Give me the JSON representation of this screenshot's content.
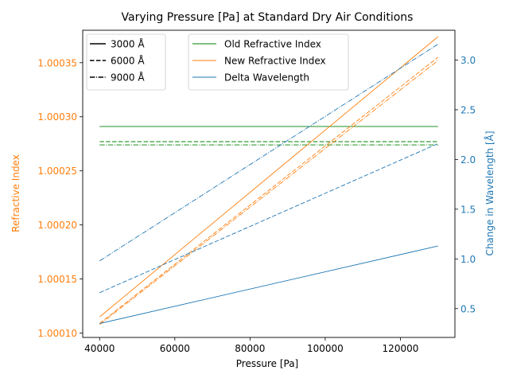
{
  "chart_data": {
    "type": "line",
    "title": "Varying Pressure [Pa] at Standard Dry Air Conditions",
    "xlabel": "Pressure [Pa]",
    "ylabel_left": "Refractive Index",
    "ylabel_right": "Change in Wavelength [Å]",
    "xlim": [
      35500,
      134500
    ],
    "ylim_left": [
      1.000096,
      1.00038
    ],
    "ylim_right": [
      0.21,
      3.3
    ],
    "x_ticks": [
      40000,
      60000,
      80000,
      100000,
      120000
    ],
    "x_tick_labels": [
      "40000",
      "60000",
      "80000",
      "100000",
      "120000"
    ],
    "y_left_ticks": [
      1.0001,
      1.00015,
      1.0002,
      1.00025,
      1.0003,
      1.00035
    ],
    "y_left_tick_labels": [
      "1.00010",
      "1.00015",
      "1.00020",
      "1.00025",
      "1.00030",
      "1.00035"
    ],
    "y_right_ticks": [
      0.5,
      1.0,
      1.5,
      2.0,
      2.5,
      3.0
    ],
    "y_right_tick_labels": [
      "0.5",
      "1.0",
      "1.5",
      "2.0",
      "2.5",
      "3.0"
    ],
    "grid": false,
    "colors": {
      "old_index": "#008000",
      "new_index": "#ff7f0e",
      "delta": "#1f77b4",
      "left_axis": "#ff7f0e",
      "right_axis": "#1f77b4"
    },
    "legend_styles": {
      "placement": "top-left",
      "entries": [
        {
          "label": "3000 Å",
          "dash": "solid"
        },
        {
          "label": "6000 Å",
          "dash": "dashed"
        },
        {
          "label": "9000 Å",
          "dash": "dashdot"
        }
      ]
    },
    "legend_quantities": {
      "placement": "top-center",
      "entries": [
        {
          "label": "Old Refractive Index",
          "color": "#008000"
        },
        {
          "label": "New Refractive Index",
          "color": "#ff7f0e"
        },
        {
          "label": "Delta Wavelength",
          "color": "#1f77b4"
        }
      ]
    },
    "series": [
      {
        "quantity": "Old Refractive Index",
        "wavelength": "3000 Å",
        "dash": "solid",
        "axis": "left",
        "color": "#008000",
        "x": [
          40000,
          130000
        ],
        "y": [
          1.000291,
          1.000291
        ]
      },
      {
        "quantity": "Old Refractive Index",
        "wavelength": "6000 Å",
        "dash": "dashed",
        "axis": "left",
        "color": "#008000",
        "x": [
          40000,
          130000
        ],
        "y": [
          1.000277,
          1.000277
        ]
      },
      {
        "quantity": "Old Refractive Index",
        "wavelength": "9000 Å",
        "dash": "dashdot",
        "axis": "left",
        "color": "#008000",
        "x": [
          40000,
          130000
        ],
        "y": [
          1.000274,
          1.000274
        ]
      },
      {
        "quantity": "New Refractive Index",
        "wavelength": "3000 Å",
        "dash": "solid",
        "axis": "left",
        "color": "#ff7f0e",
        "x": [
          40000,
          130000
        ],
        "y": [
          1.000115,
          1.000374
        ]
      },
      {
        "quantity": "New Refractive Index",
        "wavelength": "6000 Å",
        "dash": "dashed",
        "axis": "left",
        "color": "#ff7f0e",
        "x": [
          40000,
          130000
        ],
        "y": [
          1.000109,
          1.000355
        ]
      },
      {
        "quantity": "New Refractive Index",
        "wavelength": "9000 Å",
        "dash": "dashdot",
        "axis": "left",
        "color": "#ff7f0e",
        "x": [
          40000,
          130000
        ],
        "y": [
          1.000108,
          1.000352
        ]
      },
      {
        "quantity": "Delta Wavelength",
        "wavelength": "3000 Å",
        "dash": "solid",
        "axis": "right",
        "color": "#1f77b4",
        "x": [
          40000,
          130000
        ],
        "y": [
          0.35,
          1.13
        ]
      },
      {
        "quantity": "Delta Wavelength",
        "wavelength": "6000 Å",
        "dash": "dashed",
        "axis": "right",
        "color": "#1f77b4",
        "x": [
          40000,
          130000
        ],
        "y": [
          0.66,
          2.16
        ]
      },
      {
        "quantity": "Delta Wavelength",
        "wavelength": "9000 Å",
        "dash": "dashdot",
        "axis": "right",
        "color": "#1f77b4",
        "x": [
          40000,
          130000
        ],
        "y": [
          0.98,
          3.16
        ]
      }
    ]
  }
}
